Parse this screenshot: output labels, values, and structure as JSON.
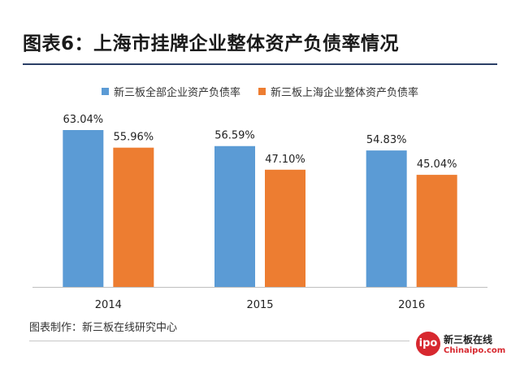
{
  "header": {
    "title": "图表6：上海市挂牌企业整体资产负债率情况"
  },
  "footer": {
    "source": "图表制作：新三板在线研究中心"
  },
  "logo": {
    "mark_text": "ipo",
    "name_cn": "新三板在线",
    "name_en": "Chinaipo.com"
  },
  "colors": {
    "series_all": "#5b9bd5",
    "series_shanghai": "#ed7d31",
    "title_rule": "#2b3f66",
    "axis": "#bfbfbf"
  },
  "chart_data": {
    "type": "bar",
    "title": "图表6：上海市挂牌企业整体资产负债率情况",
    "categories": [
      "2014",
      "2015",
      "2016"
    ],
    "series": [
      {
        "name": "新三板全部企业资产负债率",
        "values": [
          63.04,
          56.59,
          54.83
        ],
        "labels": [
          "63.04%",
          "56.59%",
          "54.83%"
        ],
        "color": "#5b9bd5"
      },
      {
        "name": "新三板上海企业整体资产负债率",
        "values": [
          55.96,
          47.1,
          45.04
        ],
        "labels": [
          "55.96%",
          "47.10%",
          "45.04%"
        ],
        "color": "#ed7d31"
      }
    ],
    "xlabel": "",
    "ylabel": "",
    "ylim": [
      0,
      63.04
    ],
    "grid": false,
    "legend_position": "top-center"
  }
}
